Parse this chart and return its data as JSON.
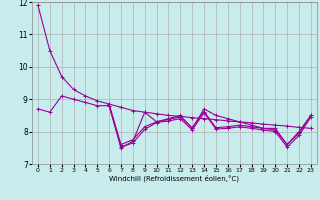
{
  "bg_color": "#c8ecec",
  "grid_color": "#b0b0b0",
  "line_color": "#990099",
  "xlim": [
    -0.5,
    23.5
  ],
  "ylim": [
    7,
    12
  ],
  "yticks": [
    7,
    8,
    9,
    10,
    11,
    12
  ],
  "xticks": [
    0,
    1,
    2,
    3,
    4,
    5,
    6,
    7,
    8,
    9,
    10,
    11,
    12,
    13,
    14,
    15,
    16,
    17,
    18,
    19,
    20,
    21,
    22,
    23
  ],
  "xlabel": "Windchill (Refroidissement éolien,°C)",
  "series": [
    {
      "x": [
        0,
        1,
        2,
        3,
        4,
        5,
        6,
        7,
        8,
        9,
        10,
        11,
        12,
        13,
        14,
        15,
        16,
        17,
        18,
        19,
        20,
        21,
        22,
        23
      ],
      "y": [
        11.9,
        10.5,
        9.7,
        9.3,
        9.1,
        8.95,
        8.85,
        8.75,
        8.65,
        8.6,
        8.55,
        8.5,
        8.47,
        8.43,
        8.4,
        8.37,
        8.33,
        8.3,
        8.27,
        8.23,
        8.2,
        8.17,
        8.13,
        8.1
      ]
    },
    {
      "x": [
        0,
        1,
        2,
        3,
        4,
        5,
        6,
        7,
        8,
        9,
        10,
        11,
        12,
        13,
        14,
        15,
        16,
        17,
        18,
        19,
        20,
        21,
        22,
        23
      ],
      "y": [
        8.7,
        8.6,
        9.1,
        9.0,
        8.9,
        8.8,
        8.8,
        7.5,
        7.7,
        8.6,
        8.3,
        8.4,
        8.5,
        8.1,
        8.7,
        8.5,
        8.4,
        8.3,
        8.2,
        8.1,
        8.1,
        7.6,
        8.0,
        8.5
      ]
    },
    {
      "x": [
        6,
        7,
        8,
        9,
        10,
        11,
        12,
        13,
        14,
        15,
        16,
        17,
        18,
        19,
        20,
        21,
        22,
        23
      ],
      "y": [
        8.85,
        7.6,
        7.75,
        8.15,
        8.3,
        8.38,
        8.45,
        8.12,
        8.62,
        8.12,
        8.15,
        8.2,
        8.15,
        8.1,
        8.05,
        7.6,
        7.95,
        8.5
      ]
    },
    {
      "x": [
        6,
        7,
        8,
        9,
        10,
        11,
        12,
        13,
        14,
        15,
        16,
        17,
        18,
        19,
        20,
        21,
        22,
        23
      ],
      "y": [
        8.8,
        7.52,
        7.65,
        8.07,
        8.28,
        8.33,
        8.4,
        8.05,
        8.58,
        8.08,
        8.1,
        8.15,
        8.1,
        8.05,
        8.0,
        7.52,
        7.88,
        8.45
      ]
    }
  ]
}
